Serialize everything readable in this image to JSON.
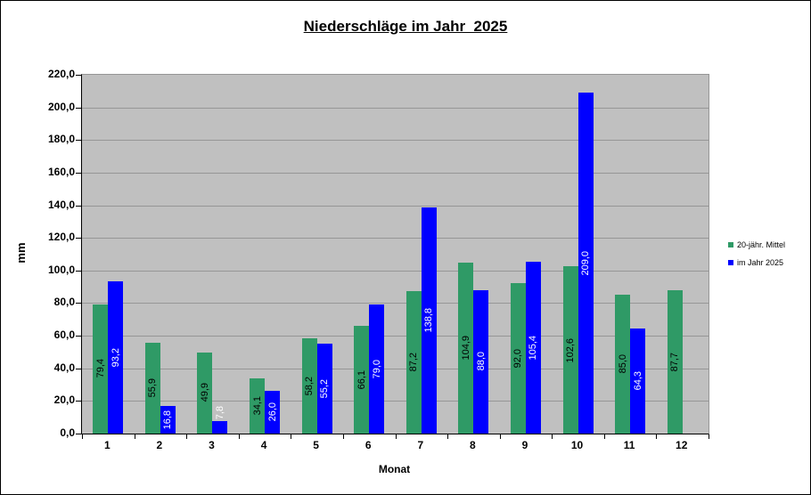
{
  "chart_data": {
    "type": "bar",
    "title": "Niederschläge im Jahr  2025",
    "xlabel": "Monat",
    "ylabel": "mm",
    "ylim": [
      0,
      220
    ],
    "ytick_step": 20,
    "ytick_labels": [
      "0,0",
      "20,0",
      "40,0",
      "60,0",
      "80,0",
      "100,0",
      "120,0",
      "140,0",
      "160,0",
      "180,0",
      "200,0",
      "220,0"
    ],
    "categories": [
      "1",
      "2",
      "3",
      "4",
      "5",
      "6",
      "7",
      "8",
      "9",
      "10",
      "11",
      "12"
    ],
    "grid": "horizontal",
    "legend_position": "right",
    "plot_bg": "#c0c0c0",
    "grid_color": "#969696",
    "axis_color": "#000000",
    "series": [
      {
        "name": "20-jähr. Mittel",
        "color": "#2f9a66",
        "label_color": "#000000",
        "values": [
          79.4,
          55.9,
          49.9,
          34.1,
          58.2,
          66.1,
          87.2,
          104.9,
          92.0,
          102.6,
          85.0,
          87.7
        ],
        "value_labels": [
          "79,4",
          "55,9",
          "49,9",
          "34,1",
          "58,2",
          "66,1",
          "87,2",
          "104,9",
          "92,0",
          "102,6",
          "85,0",
          "87,7"
        ]
      },
      {
        "name": "im Jahr 2025",
        "color": "#0000ff",
        "label_color": "#ffffff",
        "values": [
          93.2,
          16.8,
          7.8,
          26.0,
          55.2,
          79.0,
          138.8,
          88.0,
          105.4,
          209.0,
          64.3,
          null
        ],
        "value_labels": [
          "93,2",
          "16,8",
          "7,8",
          "26,0",
          "55,2",
          "79,0",
          "138,8",
          "88,0",
          "105,4",
          "209,0",
          "64,3",
          null
        ]
      }
    ]
  }
}
